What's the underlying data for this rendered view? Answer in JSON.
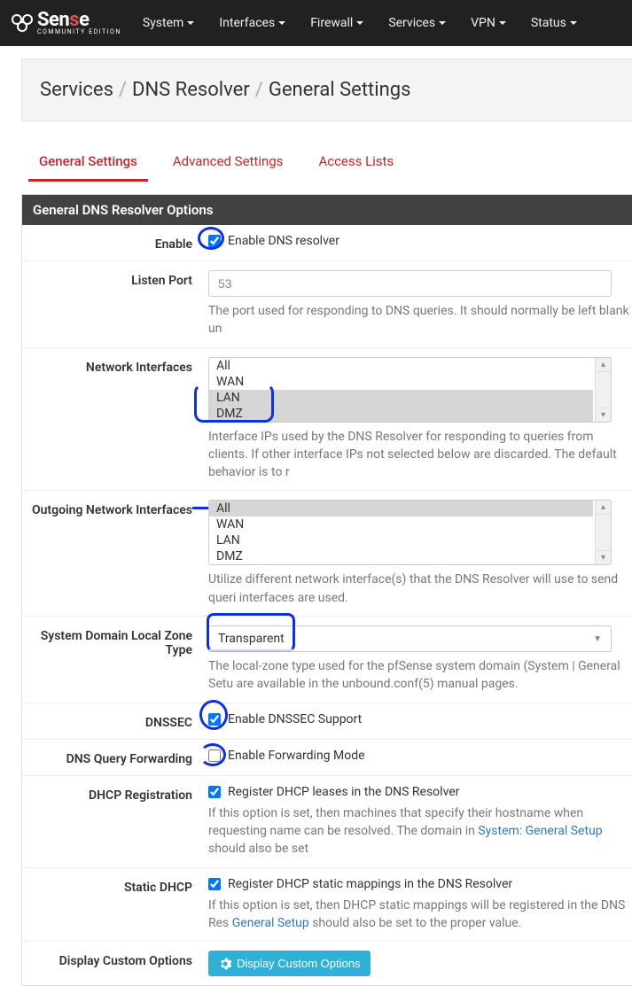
{
  "logo": {
    "name": "Sense",
    "red_letter_index": 3,
    "sub": "COMMUNITY EDITION"
  },
  "nav": [
    "System",
    "Interfaces",
    "Firewall",
    "Services",
    "VPN",
    "Status"
  ],
  "breadcrumb": [
    "Services",
    "DNS Resolver",
    "General Settings"
  ],
  "tabs": [
    "General Settings",
    "Advanced Settings",
    "Access Lists"
  ],
  "active_tab": 0,
  "section_title": "General DNS Resolver Options",
  "colors": {
    "navbar": "#212121",
    "accent": "#c1272d",
    "section_header": "#424242",
    "btn": "#31b0d5",
    "link": "#2f79b9",
    "annotation": "#1030e0"
  },
  "rows": {
    "enable": {
      "label": "Enable",
      "check_label": "Enable DNS resolver",
      "checked": true
    },
    "listen_port": {
      "label": "Listen Port",
      "value": "53",
      "help": "The port used for responding to DNS queries. It should normally be left blank un"
    },
    "network_interfaces": {
      "label": "Network Interfaces",
      "options": [
        "All",
        "WAN",
        "LAN",
        "DMZ"
      ],
      "selected": [
        "LAN",
        "DMZ"
      ],
      "help": "Interface IPs used by the DNS Resolver for responding to queries from clients. If other interface IPs not selected below are discarded. The default behavior is to r"
    },
    "outgoing_interfaces": {
      "label": "Outgoing Network Interfaces",
      "options": [
        "All",
        "WAN",
        "LAN",
        "DMZ"
      ],
      "selected": [
        "All"
      ],
      "help": "Utilize different network interface(s) that the DNS Resolver will use to send queri interfaces are used."
    },
    "local_zone": {
      "label": "System Domain Local Zone Type",
      "value": "Transparent",
      "help": "The local-zone type used for the pfSense system domain (System | General Setu are available in the unbound.conf(5) manual pages."
    },
    "dnssec": {
      "label": "DNSSEC",
      "check_label": "Enable DNSSEC Support",
      "checked": true
    },
    "forwarding": {
      "label": "DNS Query Forwarding",
      "check_label": "Enable Forwarding Mode",
      "checked": false
    },
    "dhcp_reg": {
      "label": "DHCP Registration",
      "check_label": "Register DHCP leases in the DNS Resolver",
      "checked": true,
      "help_pre": "If this option is set, then machines that specify their hostname when requesting name can be resolved. The domain in ",
      "help_link": "System: General Setup",
      "help_post": " should also be set"
    },
    "static_dhcp": {
      "label": "Static DHCP",
      "check_label": "Register DHCP static mappings in the DNS Resolver",
      "checked": true,
      "help_pre": "If this option is set, then DHCP static mappings will be registered in the DNS Res ",
      "help_link": "General Setup",
      "help_post": " should also be set to the proper value."
    },
    "custom": {
      "label": "Display Custom Options",
      "button": "Display Custom Options"
    }
  }
}
